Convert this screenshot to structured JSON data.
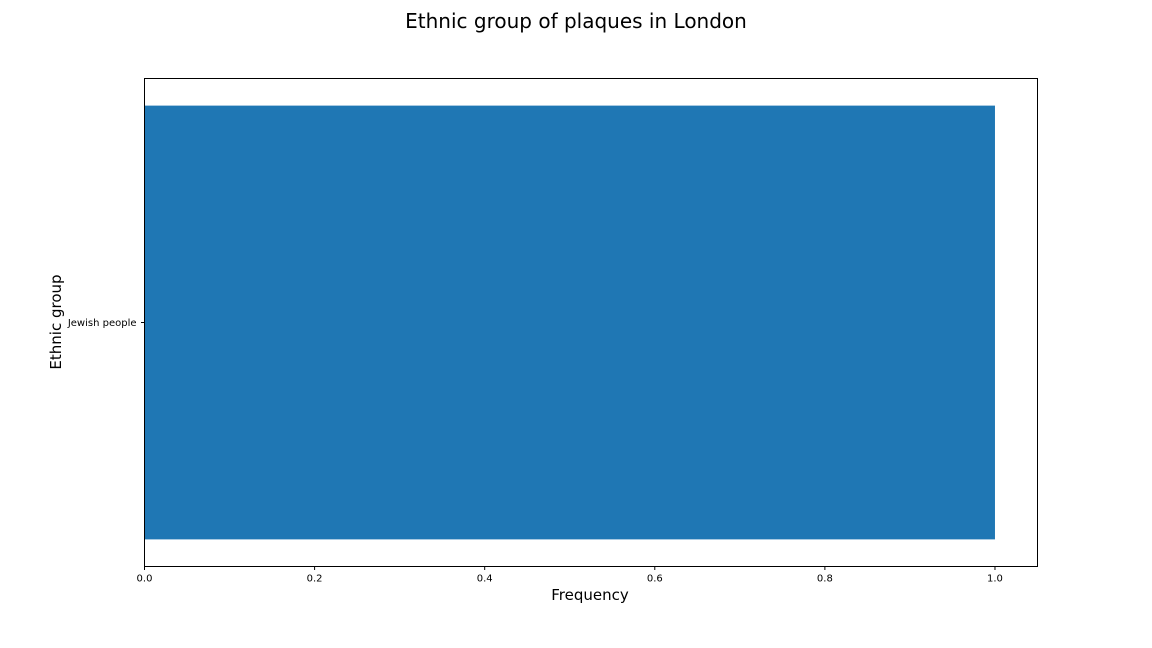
{
  "chart_data": {
    "type": "bar",
    "orientation": "horizontal",
    "title": "Ethnic group of plaques in London",
    "xlabel": "Frequency",
    "ylabel": "Ethnic group",
    "categories": [
      "Jewish people"
    ],
    "values": [
      1
    ],
    "xlim": [
      0,
      1.05
    ],
    "xticks": [
      0.0,
      0.2,
      0.4,
      0.6,
      0.8,
      1.0
    ],
    "xtick_labels": [
      "0.0",
      "0.2",
      "0.4",
      "0.6",
      "0.8",
      "1.0"
    ],
    "grid": false,
    "legend": "none",
    "colors": {
      "bar": "#1f77b4"
    }
  }
}
